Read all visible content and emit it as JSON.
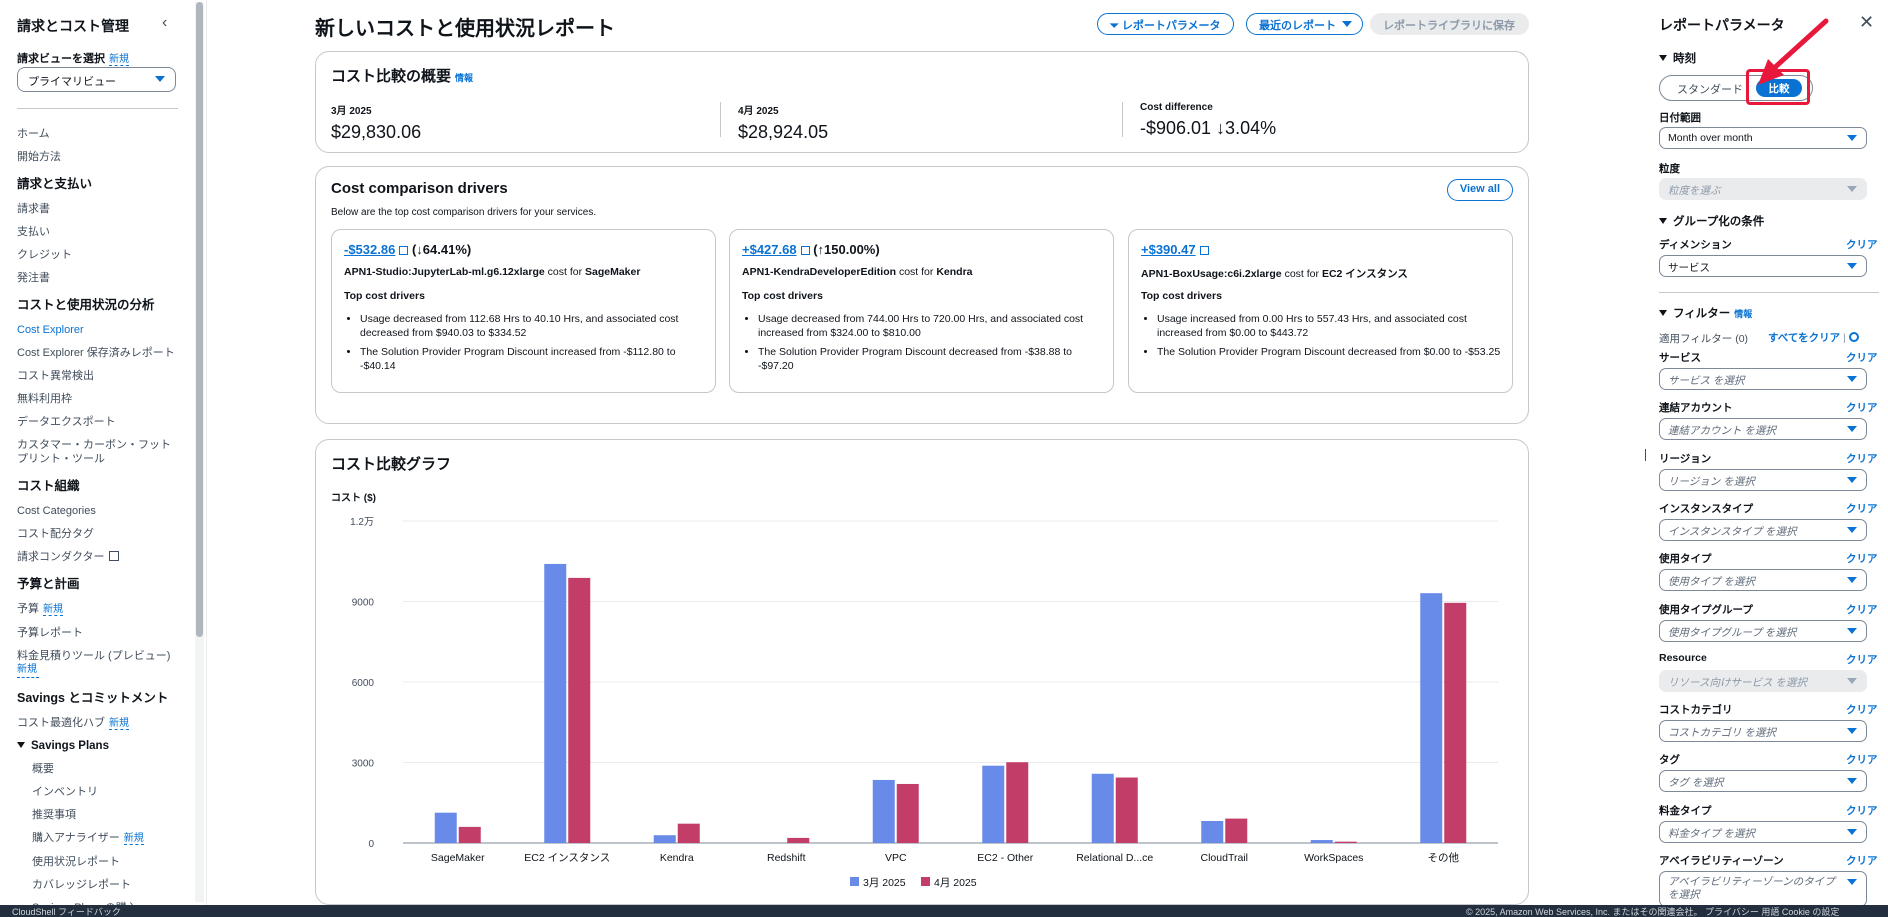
{
  "nav": {
    "title": "請求とコスト管理",
    "view_label": "請求ビューを選択",
    "new": "新規",
    "view_value": "プライマリビュー",
    "items": [
      {
        "type": "link",
        "label": "ホーム"
      },
      {
        "type": "link",
        "label": "開始方法"
      },
      {
        "type": "section",
        "label": "請求と支払い"
      },
      {
        "type": "link",
        "label": "請求書"
      },
      {
        "type": "link",
        "label": "支払い"
      },
      {
        "type": "link",
        "label": "クレジット"
      },
      {
        "type": "link",
        "label": "発注書"
      },
      {
        "type": "section",
        "label": "コストと使用状況の分析"
      },
      {
        "type": "link",
        "label": "Cost Explorer",
        "active": true
      },
      {
        "type": "link",
        "label": "Cost Explorer 保存済みレポート"
      },
      {
        "type": "link",
        "label": "コスト異常検出"
      },
      {
        "type": "link",
        "label": "無料利用枠"
      },
      {
        "type": "link",
        "label": "データエクスポート"
      },
      {
        "type": "link",
        "label": "カスタマー・カーボン・フットプリント・ツール"
      },
      {
        "type": "section",
        "label": "コスト組織"
      },
      {
        "type": "link",
        "label": "Cost Categories"
      },
      {
        "type": "link",
        "label": "コスト配分タグ"
      },
      {
        "type": "link",
        "label": "請求コンダクター",
        "external": true
      },
      {
        "type": "section",
        "label": "予算と計画"
      },
      {
        "type": "link",
        "label": "予算",
        "new": true
      },
      {
        "type": "link",
        "label": "予算レポート"
      },
      {
        "type": "link",
        "label": "料金見積りツール (プレビュー)",
        "new": true
      },
      {
        "type": "section",
        "label": "Savings とコミットメント"
      },
      {
        "type": "link",
        "label": "コスト最適化ハブ",
        "new": true
      },
      {
        "type": "group",
        "label": "Savings Plans"
      },
      {
        "type": "sub",
        "label": "概要"
      },
      {
        "type": "sub",
        "label": "インベントリ"
      },
      {
        "type": "sub",
        "label": "推奨事項"
      },
      {
        "type": "sub",
        "label": "購入アナライザー",
        "new": true
      },
      {
        "type": "sub",
        "label": "使用状況レポート"
      },
      {
        "type": "sub",
        "label": "カバレッジレポート"
      },
      {
        "type": "sub",
        "label": "Savings Plans の購入"
      }
    ]
  },
  "header": {
    "title": "新しいコストと使用状況レポート",
    "btn_params": "レポートパラメータ",
    "btn_recent": "最近のレポート",
    "btn_save": "レポートライブラリに保存"
  },
  "summary": {
    "title": "コスト比較の概要",
    "info": "情報",
    "col1_label": "3月 2025",
    "col1_value": "$29,830.06",
    "col2_label": "4月 2025",
    "col2_value": "$28,924.05",
    "col3_label": "Cost difference",
    "col3_value": "-$906.01 ↓3.04%"
  },
  "drivers": {
    "title": "Cost comparison drivers",
    "subtitle": "Below are the top cost comparison drivers for your services.",
    "view_all": "View all",
    "top_label": "Top cost drivers",
    "cost_for": "cost for",
    "cards": [
      {
        "amount": "-$532.86",
        "pct": "(↓64.41%)",
        "usage_type": "APN1-Studio:JupyterLab-ml.g6.12xlarge",
        "service": "SageMaker",
        "bullets": [
          "Usage decreased from 112.68 Hrs to 40.10 Hrs, and associated cost decreased from $940.03 to $334.52",
          "The Solution Provider Program Discount increased from -$112.80 to -$40.14"
        ]
      },
      {
        "amount": "+$427.68",
        "pct": "(↑150.00%)",
        "usage_type": "APN1-KendraDeveloperEdition",
        "service": "Kendra",
        "bullets": [
          "Usage decreased from 744.00 Hrs to 720.00 Hrs, and associated cost increased from $324.00 to $810.00",
          "The Solution Provider Program Discount decreased from -$38.88 to -$97.20"
        ]
      },
      {
        "amount": "+$390.47",
        "pct": "",
        "usage_type": "APN1-BoxUsage:c6i.2xlarge",
        "service": "EC2 インスタンス",
        "bullets": [
          "Usage increased from 0.00 Hrs to 557.43 Hrs, and associated cost increased from $0.00 to $443.72",
          "The Solution Provider Program Discount decreased from $0.00 to -$53.25"
        ]
      }
    ]
  },
  "chart_card": {
    "title": "コスト比較グラフ"
  },
  "chart_data": {
    "type": "bar",
    "ylabel": "コスト ($)",
    "ylim": [
      0,
      12000
    ],
    "y_ticks": [
      {
        "value": 0,
        "label": "0"
      },
      {
        "value": 3000,
        "label": "3000"
      },
      {
        "value": 6000,
        "label": "6000"
      },
      {
        "value": 9000,
        "label": "9000"
      },
      {
        "value": 12000,
        "label": "1.2万"
      }
    ],
    "categories": [
      "SageMaker",
      "EC2 インスタンス",
      "Kendra",
      "Redshift",
      "VPC",
      "EC2 - Other",
      "Relational D...ce",
      "CloudTrail",
      "WorkSpaces",
      "その他"
    ],
    "series": [
      {
        "name": "3月 2025",
        "color": "#688ae8",
        "values": [
          1130,
          10400,
          290,
          0,
          2350,
          2880,
          2580,
          820,
          110,
          9310
        ]
      },
      {
        "name": "4月 2025",
        "color": "#c33d69",
        "values": [
          600,
          9880,
          720,
          190,
          2200,
          3010,
          2440,
          910,
          50,
          8950
        ]
      }
    ],
    "grid": true,
    "legend": "bottom"
  },
  "panel": {
    "title": "レポートパラメータ",
    "time_section": "時刻",
    "seg_standard": "スタンダード",
    "seg_compare": "比較",
    "date_range_label": "日付範囲",
    "date_range_value": "Month over month",
    "granularity_label": "粒度",
    "granularity_placeholder": "粒度を選ぶ",
    "group_section": "グループ化の条件",
    "dimension_label": "ディメンション",
    "dimension_value": "サービス",
    "clear": "クリア",
    "filter_section": "フィルター",
    "filter_info": "情報",
    "applied_filters": "適用フィルター (0)",
    "clear_all": "すべてをクリア",
    "filters": [
      {
        "label": "サービス",
        "placeholder": "サービス を選択"
      },
      {
        "label": "連結アカウント",
        "placeholder": "連結アカウント を選択"
      },
      {
        "label": "リージョン",
        "placeholder": "リージョン を選択"
      },
      {
        "label": "インスタンスタイプ",
        "placeholder": "インスタンスタイプ を選択"
      },
      {
        "label": "使用タイプ",
        "placeholder": "使用タイプ を選択"
      },
      {
        "label": "使用タイプグループ",
        "placeholder": "使用タイプグループ を選択"
      },
      {
        "label": "Resource",
        "placeholder": "リソース向けサービス を選択",
        "disabled": true
      },
      {
        "label": "コストカテゴリ",
        "placeholder": "コストカテゴリ を選択"
      },
      {
        "label": "タグ",
        "placeholder": "タグ を選択"
      },
      {
        "label": "料金タイプ",
        "placeholder": "料金タイプ を選択"
      },
      {
        "label": "アベイラビリティーゾーン",
        "placeholder": "アベイラビリティーゾーンのタイプを選択"
      }
    ]
  },
  "footer": {
    "left": "CloudShell   フィードバック",
    "right": "© 2025, Amazon Web Services, Inc. またはその関連会社。   プライバシー   用語   Cookie の設定"
  }
}
